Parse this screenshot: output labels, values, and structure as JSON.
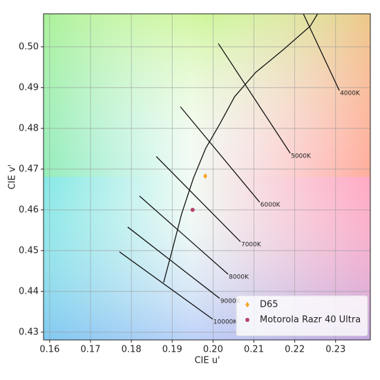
{
  "chart_data": {
    "type": "scatter",
    "xlabel": "CIE u'",
    "ylabel": "CIE v'",
    "xlim": [
      0.1585,
      0.2385
    ],
    "ylim": [
      0.4281,
      0.5081
    ],
    "xticks": [
      0.16,
      0.17,
      0.18,
      0.19,
      {
        "value": 0.2,
        "label": "0.20"
      },
      0.21,
      0.22,
      0.23
    ],
    "yticks": [
      0.43,
      0.44,
      0.45,
      0.46,
      0.47,
      0.48,
      0.49,
      {
        "value": 0.5,
        "label": "0.50"
      }
    ],
    "grid": true,
    "legend": "lower right",
    "locus": {
      "color": "#111111",
      "x": [
        0.1879,
        0.1901,
        0.1923,
        0.1952,
        0.1982,
        0.2016,
        0.2053,
        0.2104,
        0.2172,
        0.2238,
        0.2256
      ],
      "y": [
        0.4422,
        0.4505,
        0.459,
        0.4678,
        0.4751,
        0.481,
        0.4878,
        0.4937,
        0.4993,
        0.5051,
        0.5081
      ]
    },
    "isotherms": [
      {
        "label": "4000K",
        "x": [
          0.2221,
          0.2309
        ],
        "y": [
          0.5081,
          0.4893
        ]
      },
      {
        "label": "5000K",
        "x": [
          0.2013,
          0.2189
        ],
        "y": [
          0.5008,
          0.4739
        ]
      },
      {
        "label": "6000K",
        "x": [
          0.192,
          0.2114
        ],
        "y": [
          0.4853,
          0.4619
        ]
      },
      {
        "label": "7000K",
        "x": [
          0.1861,
          0.2067
        ],
        "y": [
          0.4731,
          0.4522
        ]
      },
      {
        "label": "8000K",
        "x": [
          0.182,
          0.2037
        ],
        "y": [
          0.4634,
          0.4442
        ]
      },
      {
        "label": "9000K",
        "x": [
          0.1791,
          0.2016
        ],
        "y": [
          0.4558,
          0.4383
        ]
      },
      {
        "label": "10000K",
        "x": [
          0.1771,
          0.1999
        ],
        "y": [
          0.4497,
          0.4332
        ]
      }
    ],
    "series": [
      {
        "name": "D65",
        "color": "#f5a623",
        "marker": "diamond",
        "x": [
          0.1981
        ],
        "y": [
          0.4683
        ]
      },
      {
        "name": "Motorola Razr 40 Ultra",
        "color": "#b5446e",
        "marker": "circle",
        "x": [
          0.195
        ],
        "y": [
          0.46
        ]
      }
    ]
  }
}
